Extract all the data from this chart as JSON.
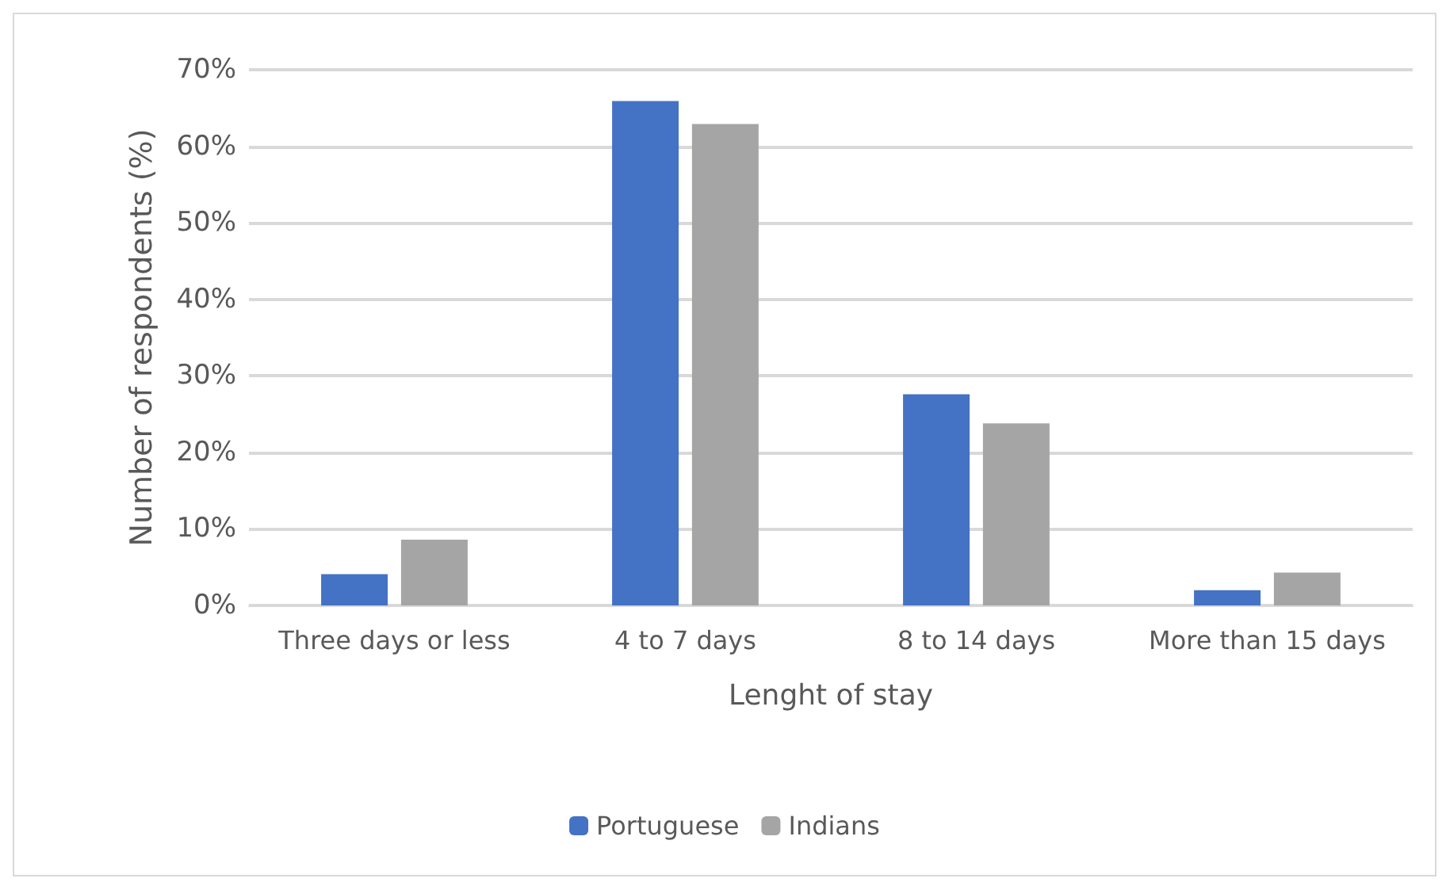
{
  "chart_data": {
    "type": "bar",
    "xlabel": "Lenght of stay",
    "ylabel": "Number of respondents (%)",
    "categories": [
      "Three days or less",
      "4 to 7 days",
      "8 to 14 days",
      "More than 15 days"
    ],
    "series": [
      {
        "name": "Portuguese",
        "color": "#4472c4",
        "values": [
          4.1,
          65.9,
          27.6,
          2.0
        ]
      },
      {
        "name": "Indians",
        "color": "#a5a5a5",
        "values": [
          8.6,
          62.9,
          23.8,
          4.3
        ]
      }
    ],
    "ylim": [
      0,
      70
    ],
    "yticks": [
      {
        "value": 0,
        "label": "0%"
      },
      {
        "value": 10,
        "label": "10%"
      },
      {
        "value": 20,
        "label": "20%"
      },
      {
        "value": 30,
        "label": "30%"
      },
      {
        "value": 40,
        "label": "40%"
      },
      {
        "value": 50,
        "label": "50%"
      },
      {
        "value": 60,
        "label": "60%"
      },
      {
        "value": 70,
        "label": "70%"
      }
    ],
    "grid": "y",
    "legend": "bottom"
  }
}
